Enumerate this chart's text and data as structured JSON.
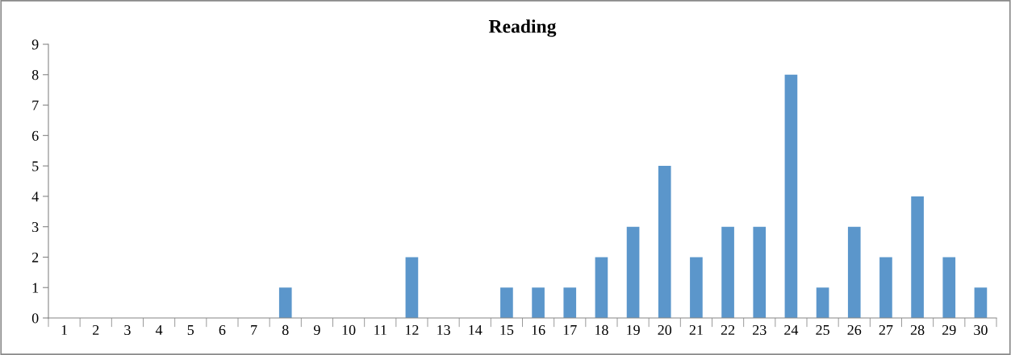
{
  "chart_data": {
    "type": "bar",
    "title": "Reading",
    "categories": [
      "1",
      "2",
      "3",
      "4",
      "5",
      "6",
      "7",
      "8",
      "9",
      "10",
      "11",
      "12",
      "13",
      "14",
      "15",
      "16",
      "17",
      "18",
      "19",
      "20",
      "21",
      "22",
      "23",
      "24",
      "25",
      "26",
      "27",
      "28",
      "29",
      "30"
    ],
    "values": [
      0,
      0,
      0,
      0,
      0,
      0,
      0,
      1,
      0,
      0,
      0,
      2,
      0,
      0,
      1,
      1,
      1,
      2,
      3,
      5,
      2,
      3,
      3,
      8,
      1,
      3,
      2,
      4,
      2,
      1
    ],
    "color": "#5b96cb",
    "ylim": [
      0,
      9
    ],
    "yticks": [
      0,
      1,
      2,
      3,
      4,
      5,
      6,
      7,
      8,
      9
    ],
    "grid": false,
    "legend": false
  }
}
